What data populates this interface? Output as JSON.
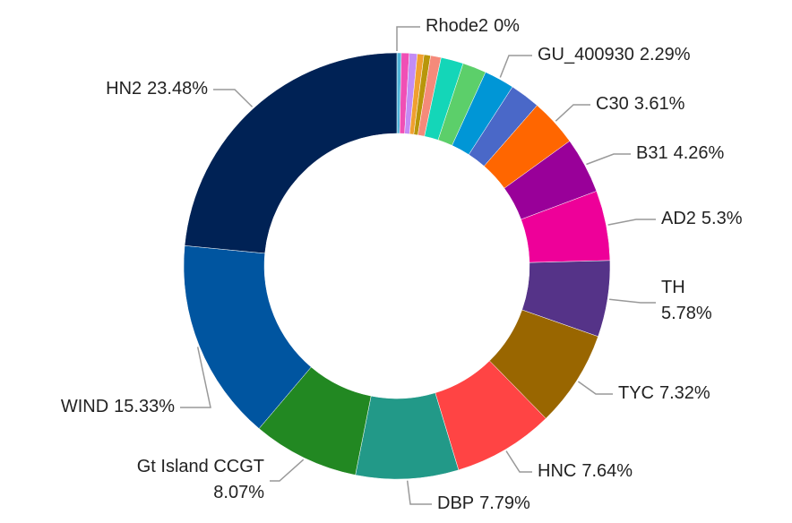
{
  "chart_data": {
    "type": "donut",
    "categories": [
      "Rhode2",
      null,
      null,
      null,
      null,
      null,
      null,
      null,
      null,
      "GU_400930",
      null,
      "C30",
      "B31",
      "AD2",
      "TH",
      "TYC",
      "HNC",
      "DBP",
      "Gt Island CCGT",
      "WIND",
      "HN2"
    ],
    "values": [
      0,
      0.33,
      0.6,
      0.6,
      0.5,
      0.5,
      0.8,
      1.7,
      1.8,
      2.29,
      2.3,
      3.61,
      4.26,
      5.3,
      5.78,
      7.32,
      7.64,
      7.79,
      8.07,
      15.33,
      23.48
    ],
    "value_labels": [
      "0%",
      null,
      null,
      null,
      null,
      null,
      null,
      null,
      null,
      "2.29%",
      null,
      "3.61%",
      "4.26%",
      "5.3%",
      "5.78%",
      "7.32%",
      "7.64%",
      "7.79%",
      "8.07%",
      "15.33%",
      "23.48%"
    ],
    "colors": [
      "#3fa7b0",
      "#4fb3d9",
      "#f04fb5",
      "#c38cf5",
      "#f0a030",
      "#b8960a",
      "#f58a7a",
      "#14d6b8",
      "#5ccf6a",
      "#0096d6",
      "#4a68c8",
      "#ff6600",
      "#990099",
      "#ee0099",
      "#553388",
      "#996600",
      "#ff4444",
      "#229988",
      "#228822",
      "#0055a0",
      "#002255"
    ]
  }
}
